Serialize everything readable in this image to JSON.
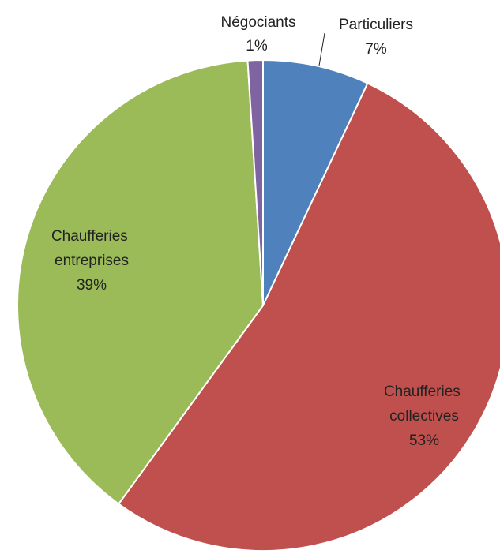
{
  "chart_data": {
    "type": "pie",
    "slices": [
      {
        "name": "Particuliers",
        "value": 7,
        "label": "7%",
        "color": "#4f81bd"
      },
      {
        "name": "Chaufferies collectives",
        "value": 53,
        "label": "53%",
        "color": "#c0504d"
      },
      {
        "name": "Chaufferies entreprises",
        "value": 39,
        "label": "39%",
        "color": "#9bbb59"
      },
      {
        "name": "Négociants",
        "value": 1,
        "label": "1%",
        "color": "#8064a2"
      }
    ],
    "legend": false
  }
}
